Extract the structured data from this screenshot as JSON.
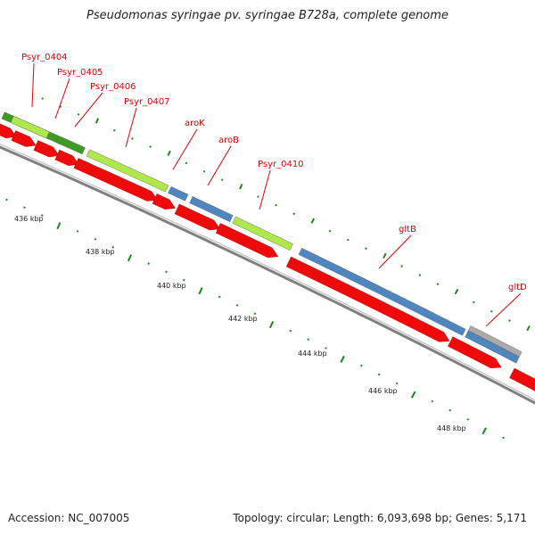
{
  "title": "Pseudomonas syringae pv. syringae B728a, complete genome",
  "footer": {
    "accession": "Accession: NC_007005",
    "topology": "Topology: circular; Length: 6,093,698 bp; Genes: 5,171"
  },
  "colors": {
    "gene_green": "#aee84a",
    "gene_dark_green": "#3e9a24",
    "gene_blue": "#4f86c0",
    "gene_gray": "#aaaaaa",
    "cds_red": "#ee0a0a",
    "backbone": "#808080",
    "tick": "#1a8a1a",
    "label": "#e00000"
  },
  "gene_labels": [
    "Psyr_0404",
    "Psyr_0405",
    "Psyr_0406",
    "Psyr_0407",
    "aroK",
    "aroB",
    "Psyr_0410",
    "gltB",
    "gltD"
  ],
  "kbp_labels": [
    "436 kbp",
    "438 kbp",
    "440 kbp",
    "442 kbp",
    "444 kbp",
    "446 kbp",
    "448 kbp"
  ]
}
